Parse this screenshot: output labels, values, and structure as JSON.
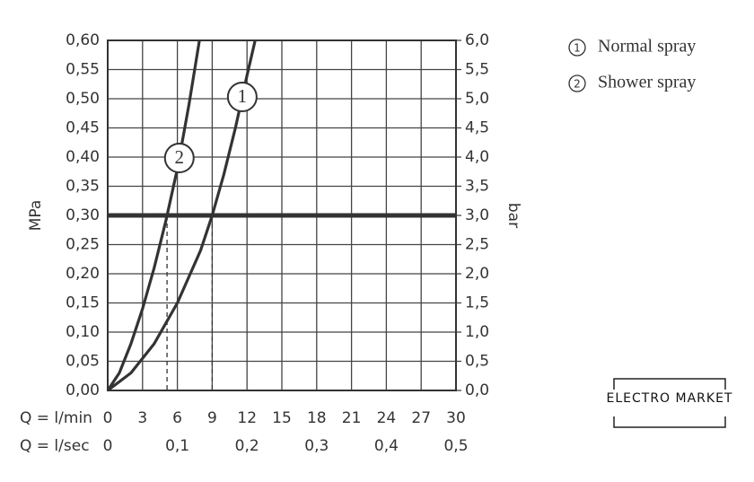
{
  "chart_data": {
    "type": "line",
    "x": [
      0,
      1,
      2,
      3,
      4,
      5,
      6,
      7,
      7.9,
      8,
      9,
      10,
      11,
      12,
      12.7
    ],
    "series": [
      {
        "name": "Normal spray",
        "marker": "1",
        "color": "#333333",
        "values": [
          0,
          null,
          0.03,
          null,
          0.08,
          null,
          0.15,
          null,
          null,
          0.24,
          0.3,
          0.37,
          0.45,
          0.54,
          0.6
        ]
      },
      {
        "name": "Shower spray",
        "marker": "2",
        "color": "#333333",
        "values": [
          0,
          0.03,
          0.08,
          0.14,
          0.21,
          0.29,
          0.38,
          0.49,
          0.6,
          null,
          null,
          null,
          null,
          null,
          null
        ]
      }
    ],
    "xlabel": "Q = l/min",
    "xlim": [
      0,
      30
    ],
    "xticks": [
      0,
      3,
      6,
      9,
      12,
      15,
      18,
      21,
      24,
      27,
      30
    ],
    "x2label": "Q = l/sec",
    "x2lim": [
      0,
      0.5
    ],
    "x2ticks": [
      0,
      {
        "value": 0.1,
        "label": "0,1"
      },
      {
        "value": 0.2,
        "label": "0,2"
      },
      {
        "value": 0.3,
        "label": "0,3"
      },
      {
        "value": 0.4,
        "label": "0,4"
      },
      {
        "value": 0.5,
        "label": "0,5"
      }
    ],
    "ylabel": "MPa",
    "ylim": [
      0,
      0.6
    ],
    "yticks": [
      {
        "value": 0,
        "label": "0,00"
      },
      {
        "value": 0.05,
        "label": "0,05"
      },
      {
        "value": 0.1,
        "label": "0,10"
      },
      {
        "value": 0.15,
        "label": "0,15"
      },
      {
        "value": 0.2,
        "label": "0,20"
      },
      {
        "value": 0.25,
        "label": "0,25"
      },
      {
        "value": 0.3,
        "label": "0,30"
      },
      {
        "value": 0.35,
        "label": "0,35"
      },
      {
        "value": 0.4,
        "label": "0,40"
      },
      {
        "value": 0.45,
        "label": "0,45"
      },
      {
        "value": 0.5,
        "label": "0,50"
      },
      {
        "value": 0.55,
        "label": "0,55"
      },
      {
        "value": 0.6,
        "label": "0,60"
      }
    ],
    "y2label": "bar",
    "y2lim": [
      0,
      6
    ],
    "y2ticks": [
      {
        "value": 0,
        "label": "0,0"
      },
      {
        "value": 0.5,
        "label": "0,5"
      },
      {
        "value": 1,
        "label": "1,0"
      },
      {
        "value": 1.5,
        "label": "1,5"
      },
      {
        "value": 2,
        "label": "2,0"
      },
      {
        "value": 2.5,
        "label": "2,5"
      },
      {
        "value": 3,
        "label": "3,0"
      },
      {
        "value": 3.5,
        "label": "3,5"
      },
      {
        "value": 4,
        "label": "4,0"
      },
      {
        "value": 4.5,
        "label": "4,5"
      },
      {
        "value": 5,
        "label": "5,0"
      },
      {
        "value": 5.5,
        "label": "5,5"
      },
      {
        "value": 6,
        "label": "6,0"
      }
    ],
    "reference_line": 0.3,
    "grid": true
  },
  "watermark": {
    "title": "ELECTRO MARKET"
  }
}
